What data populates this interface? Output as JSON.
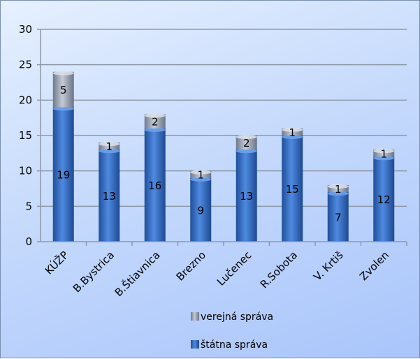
{
  "chart_data": {
    "type": "bar",
    "stacked": true,
    "categories": [
      "KÚŽP",
      "B.Bystrica",
      "B.Štiavnica",
      "Brezno",
      "Lučenec",
      "R.Sobota",
      "V. Krtiš",
      "Zvolen"
    ],
    "series": [
      {
        "name": "štátna správa",
        "values": [
          19,
          13,
          16,
          9,
          13,
          15,
          7,
          12
        ],
        "color": "#3a6fbe"
      },
      {
        "name": "verejná správa",
        "values": [
          5,
          1,
          2,
          1,
          2,
          1,
          1,
          1
        ],
        "color": "#9aa4b4"
      }
    ],
    "ylim": [
      0,
      30
    ],
    "yticks": [
      0,
      5,
      10,
      15,
      20,
      25,
      30
    ],
    "grid": true,
    "legend_position": "bottom",
    "legend_order": [
      "verejná správa",
      "štátna správa"
    ]
  }
}
